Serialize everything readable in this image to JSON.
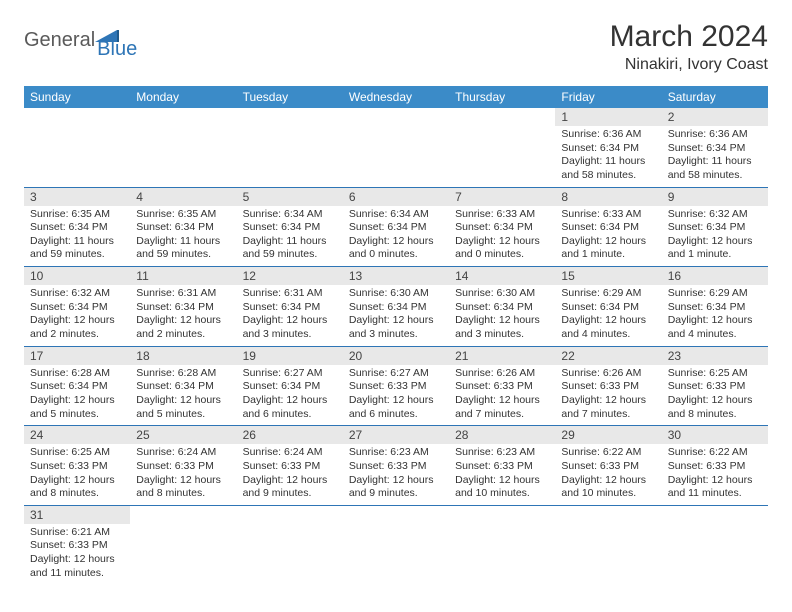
{
  "brand": {
    "part1": "General",
    "part2": "Blue"
  },
  "title": "March 2024",
  "location": "Ninakiri, Ivory Coast",
  "colors": {
    "header_bg": "#3b8bc8",
    "row_divider": "#2e75b6",
    "daynum_bg": "#e8e8e8",
    "brand_blue": "#2e75b6"
  },
  "weekdays": [
    "Sunday",
    "Monday",
    "Tuesday",
    "Wednesday",
    "Thursday",
    "Friday",
    "Saturday"
  ],
  "weeks": [
    [
      null,
      null,
      null,
      null,
      null,
      {
        "n": "1",
        "sr": "Sunrise: 6:36 AM",
        "ss": "Sunset: 6:34 PM",
        "dl": "Daylight: 11 hours and 58 minutes."
      },
      {
        "n": "2",
        "sr": "Sunrise: 6:36 AM",
        "ss": "Sunset: 6:34 PM",
        "dl": "Daylight: 11 hours and 58 minutes."
      }
    ],
    [
      {
        "n": "3",
        "sr": "Sunrise: 6:35 AM",
        "ss": "Sunset: 6:34 PM",
        "dl": "Daylight: 11 hours and 59 minutes."
      },
      {
        "n": "4",
        "sr": "Sunrise: 6:35 AM",
        "ss": "Sunset: 6:34 PM",
        "dl": "Daylight: 11 hours and 59 minutes."
      },
      {
        "n": "5",
        "sr": "Sunrise: 6:34 AM",
        "ss": "Sunset: 6:34 PM",
        "dl": "Daylight: 11 hours and 59 minutes."
      },
      {
        "n": "6",
        "sr": "Sunrise: 6:34 AM",
        "ss": "Sunset: 6:34 PM",
        "dl": "Daylight: 12 hours and 0 minutes."
      },
      {
        "n": "7",
        "sr": "Sunrise: 6:33 AM",
        "ss": "Sunset: 6:34 PM",
        "dl": "Daylight: 12 hours and 0 minutes."
      },
      {
        "n": "8",
        "sr": "Sunrise: 6:33 AM",
        "ss": "Sunset: 6:34 PM",
        "dl": "Daylight: 12 hours and 1 minute."
      },
      {
        "n": "9",
        "sr": "Sunrise: 6:32 AM",
        "ss": "Sunset: 6:34 PM",
        "dl": "Daylight: 12 hours and 1 minute."
      }
    ],
    [
      {
        "n": "10",
        "sr": "Sunrise: 6:32 AM",
        "ss": "Sunset: 6:34 PM",
        "dl": "Daylight: 12 hours and 2 minutes."
      },
      {
        "n": "11",
        "sr": "Sunrise: 6:31 AM",
        "ss": "Sunset: 6:34 PM",
        "dl": "Daylight: 12 hours and 2 minutes."
      },
      {
        "n": "12",
        "sr": "Sunrise: 6:31 AM",
        "ss": "Sunset: 6:34 PM",
        "dl": "Daylight: 12 hours and 3 minutes."
      },
      {
        "n": "13",
        "sr": "Sunrise: 6:30 AM",
        "ss": "Sunset: 6:34 PM",
        "dl": "Daylight: 12 hours and 3 minutes."
      },
      {
        "n": "14",
        "sr": "Sunrise: 6:30 AM",
        "ss": "Sunset: 6:34 PM",
        "dl": "Daylight: 12 hours and 3 minutes."
      },
      {
        "n": "15",
        "sr": "Sunrise: 6:29 AM",
        "ss": "Sunset: 6:34 PM",
        "dl": "Daylight: 12 hours and 4 minutes."
      },
      {
        "n": "16",
        "sr": "Sunrise: 6:29 AM",
        "ss": "Sunset: 6:34 PM",
        "dl": "Daylight: 12 hours and 4 minutes."
      }
    ],
    [
      {
        "n": "17",
        "sr": "Sunrise: 6:28 AM",
        "ss": "Sunset: 6:34 PM",
        "dl": "Daylight: 12 hours and 5 minutes."
      },
      {
        "n": "18",
        "sr": "Sunrise: 6:28 AM",
        "ss": "Sunset: 6:34 PM",
        "dl": "Daylight: 12 hours and 5 minutes."
      },
      {
        "n": "19",
        "sr": "Sunrise: 6:27 AM",
        "ss": "Sunset: 6:34 PM",
        "dl": "Daylight: 12 hours and 6 minutes."
      },
      {
        "n": "20",
        "sr": "Sunrise: 6:27 AM",
        "ss": "Sunset: 6:33 PM",
        "dl": "Daylight: 12 hours and 6 minutes."
      },
      {
        "n": "21",
        "sr": "Sunrise: 6:26 AM",
        "ss": "Sunset: 6:33 PM",
        "dl": "Daylight: 12 hours and 7 minutes."
      },
      {
        "n": "22",
        "sr": "Sunrise: 6:26 AM",
        "ss": "Sunset: 6:33 PM",
        "dl": "Daylight: 12 hours and 7 minutes."
      },
      {
        "n": "23",
        "sr": "Sunrise: 6:25 AM",
        "ss": "Sunset: 6:33 PM",
        "dl": "Daylight: 12 hours and 8 minutes."
      }
    ],
    [
      {
        "n": "24",
        "sr": "Sunrise: 6:25 AM",
        "ss": "Sunset: 6:33 PM",
        "dl": "Daylight: 12 hours and 8 minutes."
      },
      {
        "n": "25",
        "sr": "Sunrise: 6:24 AM",
        "ss": "Sunset: 6:33 PM",
        "dl": "Daylight: 12 hours and 8 minutes."
      },
      {
        "n": "26",
        "sr": "Sunrise: 6:24 AM",
        "ss": "Sunset: 6:33 PM",
        "dl": "Daylight: 12 hours and 9 minutes."
      },
      {
        "n": "27",
        "sr": "Sunrise: 6:23 AM",
        "ss": "Sunset: 6:33 PM",
        "dl": "Daylight: 12 hours and 9 minutes."
      },
      {
        "n": "28",
        "sr": "Sunrise: 6:23 AM",
        "ss": "Sunset: 6:33 PM",
        "dl": "Daylight: 12 hours and 10 minutes."
      },
      {
        "n": "29",
        "sr": "Sunrise: 6:22 AM",
        "ss": "Sunset: 6:33 PM",
        "dl": "Daylight: 12 hours and 10 minutes."
      },
      {
        "n": "30",
        "sr": "Sunrise: 6:22 AM",
        "ss": "Sunset: 6:33 PM",
        "dl": "Daylight: 12 hours and 11 minutes."
      }
    ],
    [
      {
        "n": "31",
        "sr": "Sunrise: 6:21 AM",
        "ss": "Sunset: 6:33 PM",
        "dl": "Daylight: 12 hours and 11 minutes."
      },
      null,
      null,
      null,
      null,
      null,
      null
    ]
  ]
}
